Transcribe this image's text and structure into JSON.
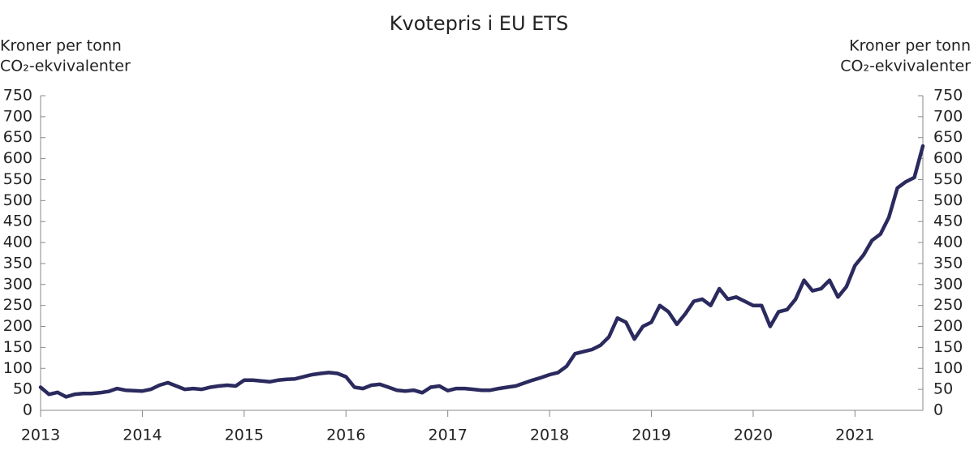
{
  "chart_data": {
    "type": "line",
    "title": "Kvotepris i EU ETS",
    "y_label": [
      "Kroner per tonn",
      "CO₂-ekvivalenter"
    ],
    "y2_label": [
      "Kroner per tonn",
      "CO₂-ekvivalenter"
    ],
    "x": [
      2013,
      2013.083,
      2013.167,
      2013.25,
      2013.333,
      2013.417,
      2013.5,
      2013.583,
      2013.667,
      2013.75,
      2013.833,
      2013.917,
      2014,
      2014.083,
      2014.167,
      2014.25,
      2014.333,
      2014.417,
      2014.5,
      2014.583,
      2014.667,
      2014.75,
      2014.833,
      2014.917,
      2015,
      2015.083,
      2015.167,
      2015.25,
      2015.333,
      2015.417,
      2015.5,
      2015.583,
      2015.667,
      2015.75,
      2015.833,
      2015.917,
      2016,
      2016.083,
      2016.167,
      2016.25,
      2016.333,
      2016.417,
      2016.5,
      2016.583,
      2016.667,
      2016.75,
      2016.833,
      2016.917,
      2017,
      2017.083,
      2017.167,
      2017.25,
      2017.333,
      2017.417,
      2017.5,
      2017.583,
      2017.667,
      2017.75,
      2017.833,
      2017.917,
      2018,
      2018.083,
      2018.167,
      2018.25,
      2018.333,
      2018.417,
      2018.5,
      2018.583,
      2018.667,
      2018.75,
      2018.833,
      2018.917,
      2019,
      2019.083,
      2019.167,
      2019.25,
      2019.333,
      2019.417,
      2019.5,
      2019.583,
      2019.667,
      2019.75,
      2019.833,
      2019.917,
      2020,
      2020.083,
      2020.167,
      2020.25,
      2020.333,
      2020.417,
      2020.5,
      2020.583,
      2020.667,
      2020.75,
      2020.833,
      2020.917,
      2021,
      2021.083,
      2021.167,
      2021.25,
      2021.333,
      2021.417,
      2021.5,
      2021.583,
      2021.667
    ],
    "series": [
      {
        "name": "Kvotepris",
        "color": "#2b2a5e",
        "values": [
          55,
          38,
          43,
          32,
          38,
          40,
          40,
          42,
          45,
          52,
          48,
          47,
          46,
          50,
          60,
          66,
          58,
          50,
          52,
          50,
          55,
          58,
          60,
          58,
          72,
          72,
          70,
          68,
          72,
          74,
          75,
          80,
          85,
          88,
          90,
          88,
          80,
          55,
          52,
          60,
          62,
          55,
          48,
          46,
          48,
          42,
          55,
          58,
          47,
          52,
          52,
          50,
          48,
          48,
          52,
          55,
          58,
          65,
          72,
          78,
          85,
          90,
          105,
          135,
          140,
          145,
          155,
          175,
          220,
          210,
          170,
          200,
          210,
          250,
          235,
          205,
          230,
          260,
          265,
          250,
          290,
          265,
          270,
          260,
          250,
          250,
          200,
          235,
          240,
          265,
          310,
          285,
          290,
          310,
          270,
          295,
          345,
          370,
          405,
          420,
          460,
          530,
          545,
          555,
          630
        ]
      }
    ],
    "xlim": [
      2013,
      2021.667
    ],
    "xticks": [
      2013,
      2014,
      2015,
      2016,
      2017,
      2018,
      2019,
      2020,
      2021
    ],
    "ylim": [
      0,
      750
    ],
    "yticks": [
      0,
      50,
      100,
      150,
      200,
      250,
      300,
      350,
      400,
      450,
      500,
      550,
      600,
      650,
      700,
      750
    ],
    "y2lim": [
      0,
      750
    ],
    "y2ticks": [
      0,
      50,
      100,
      150,
      200,
      250,
      300,
      350,
      400,
      450,
      500,
      550,
      600,
      650,
      700,
      750
    ]
  }
}
